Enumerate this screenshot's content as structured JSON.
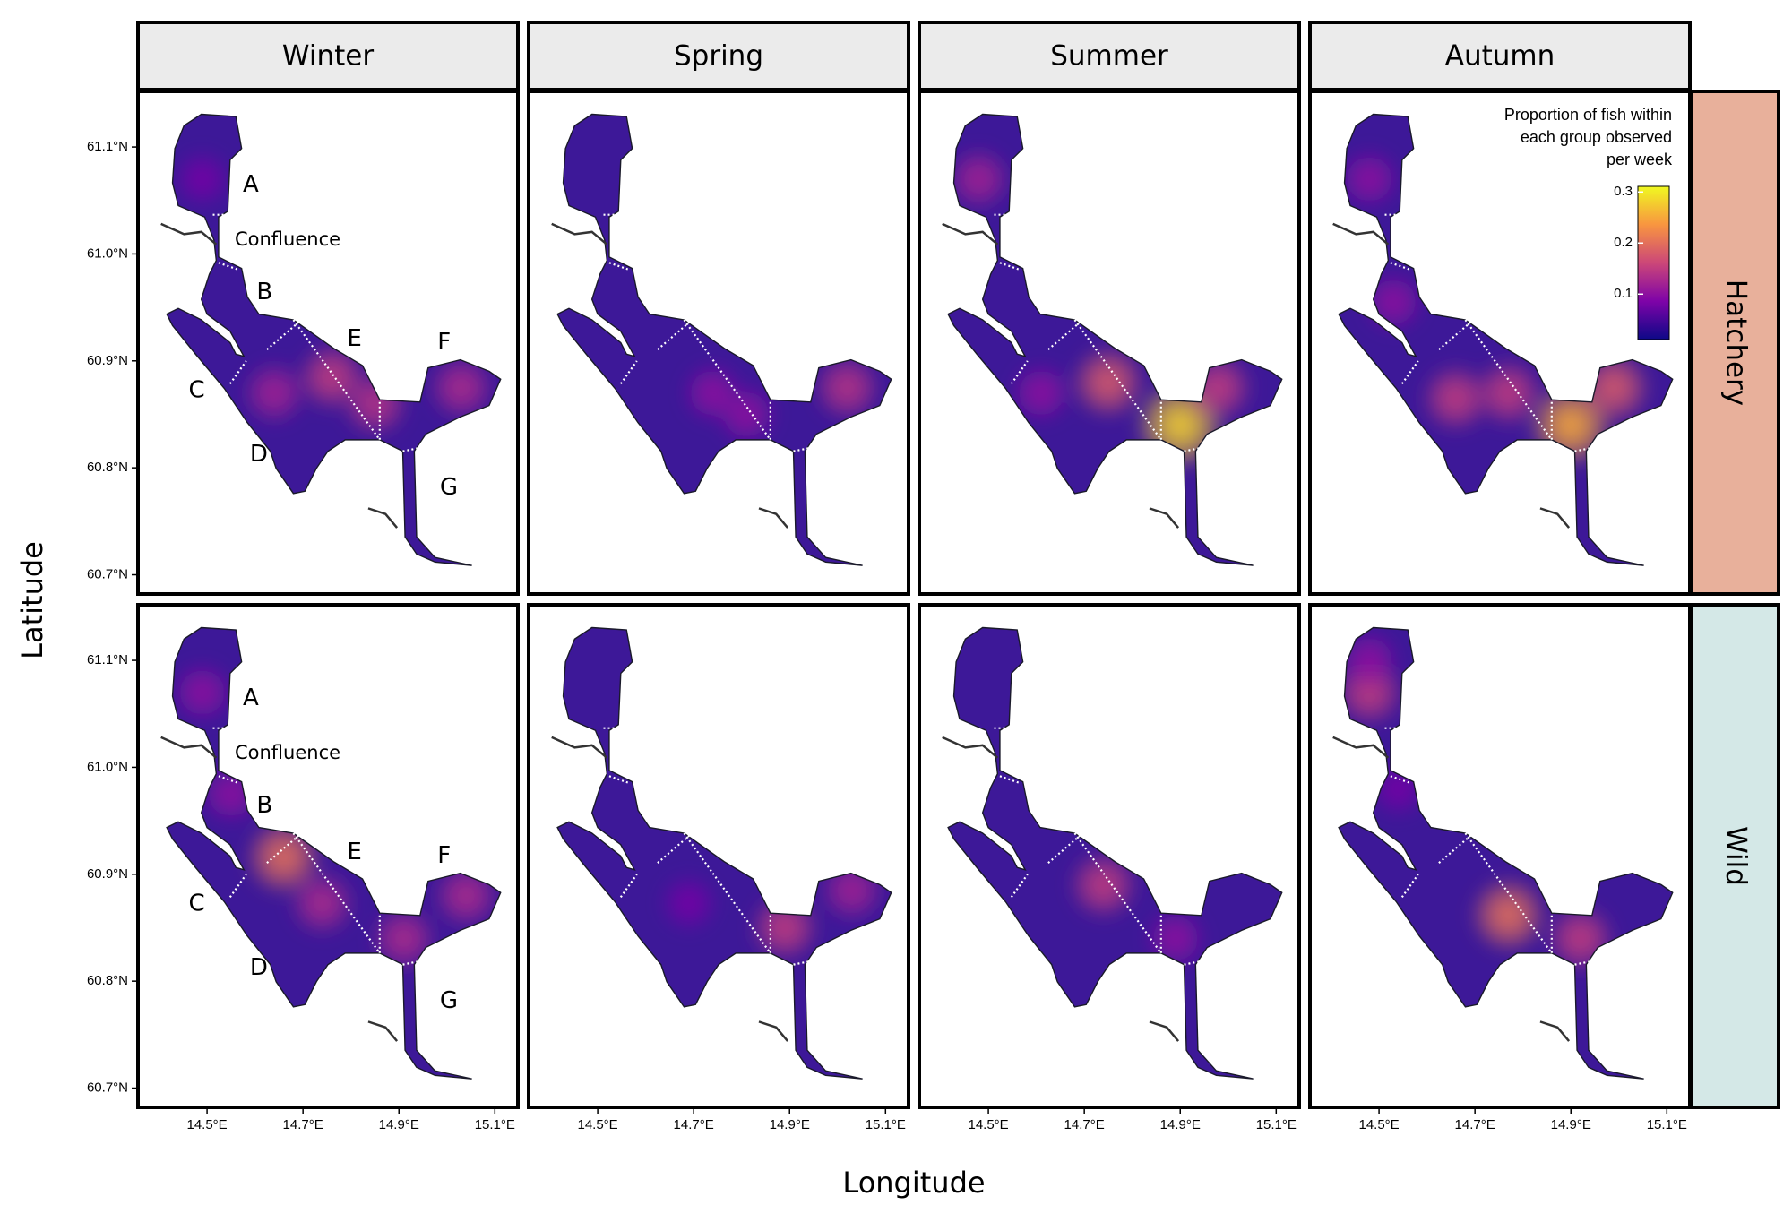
{
  "chart_data": {
    "type": "map",
    "x_label": "Longitude",
    "y_label": "Latitude",
    "columns": [
      "Winter",
      "Spring",
      "Summer",
      "Autumn"
    ],
    "rows": [
      "Hatchery",
      "Wild"
    ],
    "row_colors": [
      "#e8b09b",
      "#d4e8e7"
    ],
    "xlim": [
      14.356,
      15.148
    ],
    "ylim": [
      60.682,
      61.152
    ],
    "xticks": [
      {
        "value": 14.5,
        "label": "14.5°E"
      },
      {
        "value": 14.7,
        "label": "14.7°E"
      },
      {
        "value": 14.9,
        "label": "14.9°E"
      },
      {
        "value": 15.1,
        "label": "15.1°E"
      }
    ],
    "yticks": [
      {
        "value": 60.7,
        "label": "60.7°N"
      },
      {
        "value": 60.8,
        "label": "60.8°N"
      },
      {
        "value": 60.9,
        "label": "60.9°N"
      },
      {
        "value": 61.0,
        "label": "61.0°N"
      },
      {
        "value": 61.1,
        "label": "61.1°N"
      }
    ],
    "annotations": [
      "A",
      "Confluence",
      "B",
      "C",
      "D",
      "E",
      "F",
      "G"
    ],
    "colorbar": {
      "title": [
        "Proportion of fish within",
        "each group observed",
        "per week"
      ],
      "colormap": "plasma",
      "clim": [
        0.011,
        0.311
      ],
      "ticks": [
        0.1,
        0.2,
        0.3
      ]
    },
    "panels": [
      [
        {
          "lon": [
            14.76,
            14.64,
            14.85,
            15.03,
            14.49
          ],
          "lat": [
            60.885,
            60.87,
            60.86,
            60.875,
            61.07
          ],
          "value": [
            0.15,
            0.12,
            0.14,
            0.13,
            0.08
          ]
        },
        {
          "lon": [
            15.02,
            14.74,
            14.81
          ],
          "lat": [
            60.875,
            60.87,
            60.85
          ],
          "value": [
            0.14,
            0.1,
            0.1
          ]
        },
        {
          "lon": [
            14.9,
            14.75,
            14.98,
            14.48,
            14.61
          ],
          "lat": [
            60.84,
            60.88,
            60.875,
            61.07,
            60.87
          ],
          "value": [
            0.28,
            0.18,
            0.15,
            0.12,
            0.1
          ]
        },
        {
          "lon": [
            14.9,
            14.77,
            14.66,
            14.99,
            14.48,
            14.53
          ],
          "lat": [
            60.84,
            60.87,
            60.865,
            60.875,
            61.07,
            60.955
          ],
          "value": [
            0.25,
            0.15,
            0.15,
            0.18,
            0.1,
            0.1
          ]
        }
      ],
      [
        {
          "lon": [
            14.66,
            14.74,
            14.91,
            15.04,
            14.49,
            14.55
          ],
          "lat": [
            60.916,
            60.873,
            60.84,
            60.88,
            61.07,
            60.975
          ],
          "value": [
            0.2,
            0.13,
            0.13,
            0.13,
            0.1,
            0.1
          ]
        },
        {
          "lon": [
            14.89,
            15.03,
            14.69
          ],
          "lat": [
            60.85,
            60.885,
            60.873
          ],
          "value": [
            0.15,
            0.12,
            0.08
          ]
        },
        {
          "lon": [
            14.74,
            14.89
          ],
          "lat": [
            60.89,
            60.84
          ],
          "value": [
            0.15,
            0.1
          ]
        },
        {
          "lon": [
            14.77,
            14.92,
            14.48,
            14.48,
            14.54
          ],
          "lat": [
            60.862,
            60.84,
            61.07,
            61.1,
            60.98
          ],
          "value": [
            0.2,
            0.15,
            0.15,
            0.1,
            0.08
          ]
        }
      ]
    ]
  }
}
